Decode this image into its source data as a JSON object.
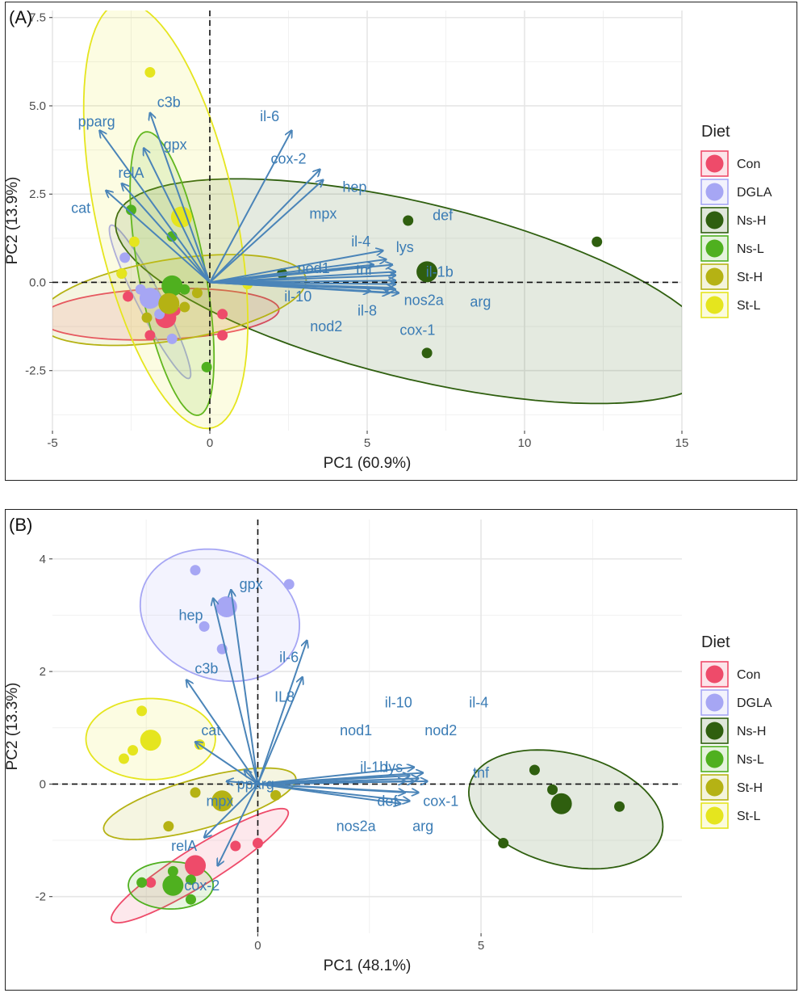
{
  "colors": {
    "Con": "#EE4B6A",
    "DGLA": "#A6A6F4",
    "Ns-H": "#2F5F0F",
    "Ns-L": "#4FB01F",
    "St-H": "#B5B214",
    "St-L": "#E5E51E",
    "arrow": "#4A84B8",
    "arrow_text": "#3B7CB5",
    "grid": "#E6E6E6",
    "axis_text": "#4D4D4D"
  },
  "chart_data": [
    {
      "type": "scatter",
      "panel_label": "(A)",
      "xlabel": "PC1 (60.9%)",
      "ylabel": "PC2 (13.9%)",
      "xlim": [
        -5,
        15
      ],
      "ylim": [
        -4.2,
        7.7
      ],
      "x_ticks": [
        -5,
        0,
        5,
        10,
        15
      ],
      "x_tick_labels": [
        "-5",
        "0",
        "5",
        "10",
        "15"
      ],
      "y_ticks": [
        -2.5,
        0,
        2.5,
        5,
        7.5
      ],
      "y_tick_labels": [
        "-2.5",
        "0.0",
        "2.5",
        "5.0",
        "7.5"
      ],
      "grid": true,
      "legend": {
        "title": "Diet",
        "position": "right",
        "entries": [
          "Con",
          "DGLA",
          "Ns-H",
          "Ns-L",
          "St-H",
          "St-L"
        ]
      },
      "groups": [
        {
          "name": "Con",
          "centroid": [
            -1.4,
            -1.0
          ],
          "points": [
            [
              -2.6,
              -0.4
            ],
            [
              -1.9,
              -1.5
            ],
            [
              -1.1,
              -0.8
            ],
            [
              0.4,
              -0.9
            ],
            [
              0.4,
              -1.5
            ]
          ],
          "ellipse": {
            "cx": -1.6,
            "cy": -0.9,
            "rx": 3.8,
            "ry": 0.72,
            "angle": 2
          }
        },
        {
          "name": "DGLA",
          "centroid": [
            -1.9,
            -0.45
          ],
          "points": [
            [
              -2.7,
              0.7
            ],
            [
              -2.2,
              -0.2
            ],
            [
              -1.6,
              -0.9
            ],
            [
              -1.2,
              -1.6
            ]
          ],
          "ellipse": {
            "cx": -1.9,
            "cy": -0.55,
            "rx": 2.5,
            "ry": 0.38,
            "angle": -60
          }
        },
        {
          "name": "Ns-H",
          "centroid": [
            6.9,
            0.3
          ],
          "points": [
            [
              6.3,
              1.75
            ],
            [
              6.9,
              -2.0
            ],
            [
              12.3,
              1.15
            ],
            [
              2.3,
              0.25
            ]
          ],
          "ellipse": {
            "cx": 6.6,
            "cy": -0.25,
            "rx": 9.8,
            "ry": 2.5,
            "angle": -12
          }
        },
        {
          "name": "Ns-L",
          "centroid": [
            -1.2,
            -0.1
          ],
          "points": [
            [
              -2.5,
              2.05
            ],
            [
              -1.2,
              1.3
            ],
            [
              -0.8,
              -0.2
            ],
            [
              -0.1,
              -2.4
            ]
          ],
          "ellipse": {
            "cx": -1.2,
            "cy": 0.25,
            "rx": 4.1,
            "ry": 1.05,
            "angle": -78
          }
        },
        {
          "name": "St-H",
          "centroid": [
            -1.3,
            -0.6
          ],
          "points": [
            [
              -2.8,
              0.25
            ],
            [
              -2.0,
              -1.0
            ],
            [
              -0.8,
              -0.7
            ],
            [
              -0.4,
              -0.3
            ]
          ],
          "ellipse": {
            "cx": -1.2,
            "cy": -0.5,
            "rx": 4.3,
            "ry": 1.15,
            "angle": 8
          }
        },
        {
          "name": "St-L",
          "centroid": [
            -0.9,
            1.85
          ],
          "points": [
            [
              -1.9,
              5.95
            ],
            [
              -2.4,
              1.15
            ],
            [
              -2.8,
              0.25
            ],
            [
              1.2,
              -0.05
            ]
          ],
          "ellipse": {
            "cx": -1.4,
            "cy": 1.9,
            "rx": 6.2,
            "ry": 2.2,
            "angle": -76
          }
        }
      ],
      "loadings": [
        {
          "label": "pparg",
          "end": [
            -3.5,
            4.3
          ],
          "label_at": [
            -3.6,
            4.55
          ]
        },
        {
          "label": "c3b",
          "end": [
            -1.9,
            4.8
          ],
          "label_at": [
            -1.3,
            5.1
          ]
        },
        {
          "label": "gpx",
          "end": [
            -2.1,
            3.8
          ],
          "label_at": [
            -1.1,
            3.9
          ]
        },
        {
          "label": "relA",
          "end": [
            -2.8,
            2.8
          ],
          "label_at": [
            -2.5,
            3.1
          ]
        },
        {
          "label": "cat",
          "end": [
            -3.3,
            2.6
          ],
          "label_at": [
            -4.1,
            2.1
          ]
        },
        {
          "label": "il-6",
          "end": [
            2.6,
            4.3
          ],
          "label_at": [
            1.9,
            4.7
          ]
        },
        {
          "label": "cox-2",
          "end": [
            3.5,
            3.2
          ],
          "label_at": [
            2.5,
            3.5
          ]
        },
        {
          "label": "hep",
          "end": [
            3.6,
            2.9
          ],
          "label_at": [
            4.6,
            2.7
          ]
        },
        {
          "label": "mpx",
          "end": [
            5.5,
            0.9
          ],
          "label_at": [
            3.6,
            1.95
          ]
        },
        {
          "label": "def",
          "end": [
            5.8,
            0.5
          ],
          "label_at": [
            7.4,
            1.9
          ]
        },
        {
          "label": "il-4",
          "end": [
            5.6,
            0.65
          ],
          "label_at": [
            4.8,
            1.15
          ]
        },
        {
          "label": "lys",
          "end": [
            5.9,
            0.3
          ],
          "label_at": [
            6.2,
            1.0
          ]
        },
        {
          "label": "nod1",
          "end": [
            5.2,
            0.5
          ],
          "label_at": [
            3.3,
            0.4
          ]
        },
        {
          "label": "tnf",
          "end": [
            5.9,
            0.2
          ],
          "label_at": [
            4.9,
            0.35
          ]
        },
        {
          "label": "il-1b",
          "end": [
            5.9,
            0.05
          ],
          "label_at": [
            7.3,
            0.3
          ]
        },
        {
          "label": "il-10",
          "end": [
            5.1,
            -0.25
          ],
          "label_at": [
            2.8,
            -0.4
          ]
        },
        {
          "label": "nos2a",
          "end": [
            5.8,
            -0.15
          ],
          "label_at": [
            6.8,
            -0.5
          ]
        },
        {
          "label": "arg",
          "end": [
            6.0,
            -0.3
          ],
          "label_at": [
            8.6,
            -0.55
          ]
        },
        {
          "label": "il-8",
          "end": [
            5.7,
            -0.3
          ],
          "label_at": [
            5.0,
            -0.8
          ]
        },
        {
          "label": "nod2",
          "end": [
            5.9,
            -0.05
          ],
          "label_at": [
            3.7,
            -1.25
          ]
        },
        {
          "label": "cox-1",
          "end": [
            5.9,
            -0.2
          ],
          "label_at": [
            6.6,
            -1.35
          ]
        }
      ]
    },
    {
      "type": "scatter",
      "panel_label": "(B)",
      "xlabel": "PC1 (48.1%)",
      "ylabel": "PC2 (13.3%)",
      "xlim": [
        -4.6,
        9.5
      ],
      "ylim": [
        -2.65,
        4.7
      ],
      "x_ticks": [
        0,
        5
      ],
      "x_tick_labels": [
        "0",
        "5"
      ],
      "y_ticks": [
        -2,
        0,
        2,
        4
      ],
      "y_tick_labels": [
        "-2",
        "0",
        "2",
        "4"
      ],
      "grid": true,
      "legend": {
        "title": "Diet",
        "position": "right",
        "entries": [
          "Con",
          "DGLA",
          "Ns-H",
          "Ns-L",
          "St-H",
          "St-L"
        ]
      },
      "groups": [
        {
          "name": "Con",
          "centroid": [
            -1.4,
            -1.45
          ],
          "points": [
            [
              -2.4,
              -1.75
            ],
            [
              -0.5,
              -1.1
            ],
            [
              0.0,
              -1.05
            ]
          ],
          "ellipse": {
            "cx": -1.3,
            "cy": -1.45,
            "rx": 2.2,
            "ry": 0.35,
            "angle": 26
          }
        },
        {
          "name": "DGLA",
          "centroid": [
            -0.7,
            3.15
          ],
          "points": [
            [
              -1.4,
              3.8
            ],
            [
              -1.2,
              2.8
            ],
            [
              -0.8,
              2.4
            ],
            [
              0.7,
              3.55
            ]
          ],
          "ellipse": {
            "cx": -0.85,
            "cy": 3.0,
            "rx": 1.8,
            "ry": 1.15,
            "angle": -10
          }
        },
        {
          "name": "Ns-H",
          "centroid": [
            6.8,
            -0.35
          ],
          "points": [
            [
              6.2,
              0.25
            ],
            [
              6.6,
              -0.1
            ],
            [
              8.1,
              -0.4
            ],
            [
              5.5,
              -1.05
            ]
          ],
          "ellipse": {
            "cx": 6.9,
            "cy": -0.45,
            "rx": 2.2,
            "ry": 1.0,
            "angle": -10
          }
        },
        {
          "name": "Ns-L",
          "centroid": [
            -1.9,
            -1.8
          ],
          "points": [
            [
              -2.6,
              -1.75
            ],
            [
              -1.9,
              -1.55
            ],
            [
              -1.5,
              -1.7
            ],
            [
              -1.5,
              -2.05
            ]
          ],
          "ellipse": {
            "cx": -1.95,
            "cy": -1.8,
            "rx": 0.95,
            "ry": 0.42,
            "angle": 0
          }
        },
        {
          "name": "St-H",
          "centroid": [
            -0.8,
            -0.3
          ],
          "points": [
            [
              -1.4,
              -0.15
            ],
            [
              -2.0,
              -0.75
            ],
            [
              0.4,
              -0.2
            ],
            [
              -0.7,
              -0.35
            ]
          ],
          "ellipse": {
            "cx": -1.3,
            "cy": -0.35,
            "rx": 2.2,
            "ry": 0.45,
            "angle": 12
          }
        },
        {
          "name": "St-L",
          "centroid": [
            -2.4,
            0.78
          ],
          "points": [
            [
              -2.6,
              1.3
            ],
            [
              -2.8,
              0.6
            ],
            [
              -3.0,
              0.45
            ],
            [
              -1.3,
              0.7
            ]
          ],
          "ellipse": {
            "cx": -2.4,
            "cy": 0.8,
            "rx": 1.45,
            "ry": 0.72,
            "angle": 0
          }
        }
      ],
      "loadings": [
        {
          "label": "gpx",
          "end": [
            -0.6,
            3.45
          ],
          "label_at": [
            -0.15,
            3.55
          ]
        },
        {
          "label": "hep",
          "end": [
            -1.0,
            3.3
          ],
          "label_at": [
            -1.5,
            3.0
          ]
        },
        {
          "label": "c3b",
          "end": [
            -1.6,
            1.85
          ],
          "label_at": [
            -1.15,
            2.05
          ]
        },
        {
          "label": "il-6",
          "end": [
            1.1,
            2.55
          ],
          "label_at": [
            0.7,
            2.25
          ]
        },
        {
          "label": "IL8",
          "end": [
            1.0,
            1.9
          ],
          "label_at": [
            0.6,
            1.55
          ]
        },
        {
          "label": "cat",
          "end": [
            -1.4,
            0.75
          ],
          "label_at": [
            -1.05,
            0.95
          ]
        },
        {
          "label": "pparg",
          "end": [
            -0.3,
            0.25
          ],
          "label_at": [
            -0.05,
            0.0
          ]
        },
        {
          "label": "mpx",
          "end": [
            -0.7,
            0.05
          ],
          "label_at": [
            -0.85,
            -0.3
          ]
        },
        {
          "label": "relA",
          "end": [
            -1.2,
            -0.95
          ],
          "label_at": [
            -1.65,
            -1.1
          ]
        },
        {
          "label": "cox-2",
          "end": [
            -0.9,
            -1.45
          ],
          "label_at": [
            -1.25,
            -1.8
          ]
        },
        {
          "label": "il-10",
          "end": [
            3.5,
            0.3
          ],
          "label_at": [
            3.15,
            1.45
          ]
        },
        {
          "label": "il-4",
          "end": [
            3.7,
            0.2
          ],
          "label_at": [
            4.95,
            1.45
          ]
        },
        {
          "label": "nod1",
          "end": [
            3.4,
            0.15
          ],
          "label_at": [
            2.2,
            0.95
          ]
        },
        {
          "label": "nod2",
          "end": [
            3.6,
            0.1
          ],
          "label_at": [
            4.1,
            0.95
          ]
        },
        {
          "label": "il-1b",
          "end": [
            3.3,
            0.05
          ],
          "label_at": [
            2.6,
            0.3
          ]
        },
        {
          "label": "lys",
          "end": [
            3.5,
            0.05
          ],
          "label_at": [
            3.05,
            0.3
          ]
        },
        {
          "label": "tnf",
          "end": [
            3.8,
            0.05
          ],
          "label_at": [
            5.0,
            0.2
          ]
        },
        {
          "label": "def",
          "end": [
            3.3,
            -0.15
          ],
          "label_at": [
            2.9,
            -0.3
          ]
        },
        {
          "label": "cox-1",
          "end": [
            3.6,
            -0.15
          ],
          "label_at": [
            4.1,
            -0.3
          ]
        },
        {
          "label": "nos2a",
          "end": [
            3.2,
            -0.35
          ],
          "label_at": [
            2.2,
            -0.75
          ]
        },
        {
          "label": "arg",
          "end": [
            3.4,
            -0.3
          ],
          "label_at": [
            3.7,
            -0.75
          ]
        }
      ]
    }
  ]
}
